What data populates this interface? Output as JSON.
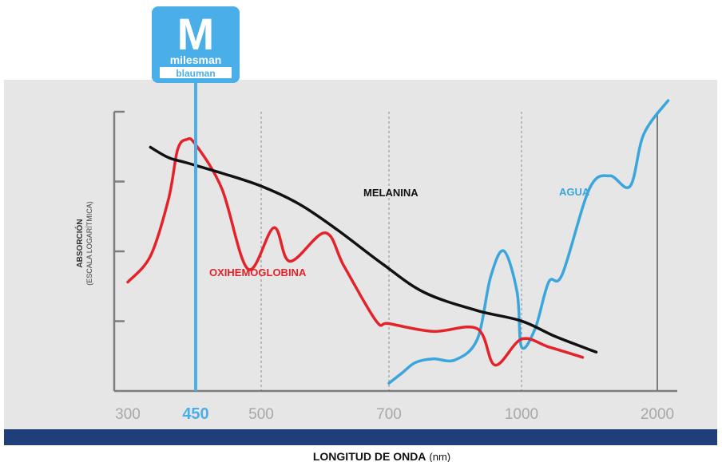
{
  "brand": {
    "letter": "M",
    "name": "milesman",
    "subname": "blauman",
    "color": "#4aaee8"
  },
  "chart_data": {
    "type": "line",
    "xlabel": "LONGITUD DE ONDA",
    "xlabel_unit": "(nm)",
    "ylabel": "ABSORCIÓN",
    "ylabel_sub": "(ESCALA LOGARÍTMICA)",
    "x_scale": "non-uniform",
    "x_ticks": [
      "300",
      "450",
      "500",
      "700",
      "1000",
      "2000"
    ],
    "highlight_tick": "450",
    "y_tick_count": 4,
    "grid_dashed_at": [
      "500",
      "700",
      "1000"
    ],
    "grid_solid_at": [
      "2000"
    ],
    "colors": {
      "panel": "#e6e6e6",
      "axis": "#7d7d7d",
      "tick_label": "#a8a8a8",
      "highlight": "#4aaee8",
      "footer_band": "#1f3f7a"
    },
    "series": [
      {
        "name": "MELANINA",
        "color": "#111111",
        "points": [
          [
            350,
            4.7
          ],
          [
            390,
            4.5
          ],
          [
            430,
            4.4
          ],
          [
            470,
            4.2
          ],
          [
            500,
            3.95
          ],
          [
            560,
            3.6
          ],
          [
            620,
            3.1
          ],
          [
            690,
            2.45
          ],
          [
            780,
            1.9
          ],
          [
            900,
            1.55
          ],
          [
            1000,
            1.35
          ],
          [
            1250,
            1.05
          ],
          [
            1550,
            0.75
          ]
        ]
      },
      {
        "name": "OXIHEMOGLOBINA",
        "color": "#e3222a",
        "points": [
          [
            300,
            2.1
          ],
          [
            350,
            2.6
          ],
          [
            390,
            3.7
          ],
          [
            410,
            4.65
          ],
          [
            430,
            4.85
          ],
          [
            450,
            4.75
          ],
          [
            470,
            3.9
          ],
          [
            490,
            2.35
          ],
          [
            520,
            3.15
          ],
          [
            545,
            2.5
          ],
          [
            600,
            3.05
          ],
          [
            630,
            2.4
          ],
          [
            680,
            1.35
          ],
          [
            700,
            1.3
          ],
          [
            800,
            1.15
          ],
          [
            900,
            1.2
          ],
          [
            940,
            0.5
          ],
          [
            1000,
            1.0
          ],
          [
            1200,
            0.85
          ],
          [
            1450,
            0.65
          ]
        ]
      },
      {
        "name": "AGUA",
        "color": "#3aa6dc",
        "points": [
          [
            700,
            0.15
          ],
          [
            730,
            0.35
          ],
          [
            760,
            0.55
          ],
          [
            800,
            0.62
          ],
          [
            850,
            0.6
          ],
          [
            900,
            1.0
          ],
          [
            930,
            2.2
          ],
          [
            960,
            2.7
          ],
          [
            990,
            1.9
          ],
          [
            1000,
            0.85
          ],
          [
            1100,
            1.2
          ],
          [
            1200,
            2.1
          ],
          [
            1300,
            2.25
          ],
          [
            1500,
            3.9
          ],
          [
            1650,
            4.15
          ],
          [
            1800,
            3.95
          ],
          [
            1900,
            4.95
          ],
          [
            2050,
            5.6
          ]
        ]
      }
    ]
  }
}
